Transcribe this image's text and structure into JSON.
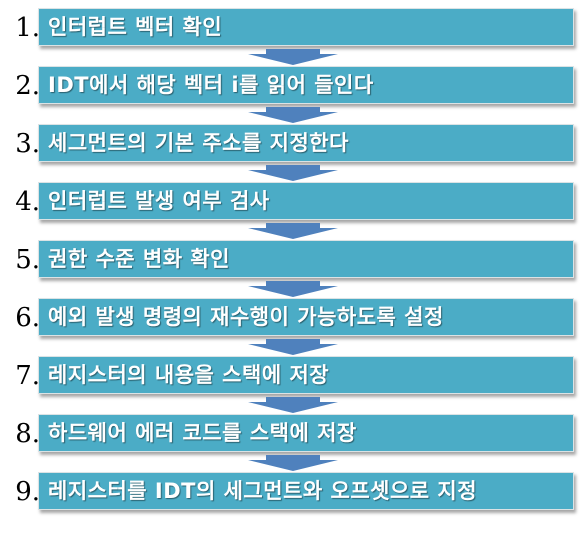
{
  "steps": [
    {
      "number": "1.",
      "label": "인터럽트 벡터  확인"
    },
    {
      "number": "2.",
      "label": "IDT에서 해당 벡터 i를 읽어 들인다"
    },
    {
      "number": "3.",
      "label": "세그먼트의 기본 주소를 지정한다"
    },
    {
      "number": "4.",
      "label": "인터럽트 발생 여부 검사"
    },
    {
      "number": "5.",
      "label": "권한 수준 변화 확인"
    },
    {
      "number": "6.",
      "label": "예외 발생 명령의 재수행이 가능하도록 설정"
    },
    {
      "number": "7.",
      "label": "레지스터의 내용을 스택에 저장"
    },
    {
      "number": "8.",
      "label": "하드웨어 에러 코드를 스택에 저장"
    },
    {
      "number": "9.",
      "label": "레지스터를 IDT의 세그먼트와 오프셋으로 지정"
    }
  ],
  "colors": {
    "box_fill": "#4bacc6",
    "arrow_fill": "#4f81bd",
    "label_text": "#ffffff",
    "number_text": "#000000"
  }
}
